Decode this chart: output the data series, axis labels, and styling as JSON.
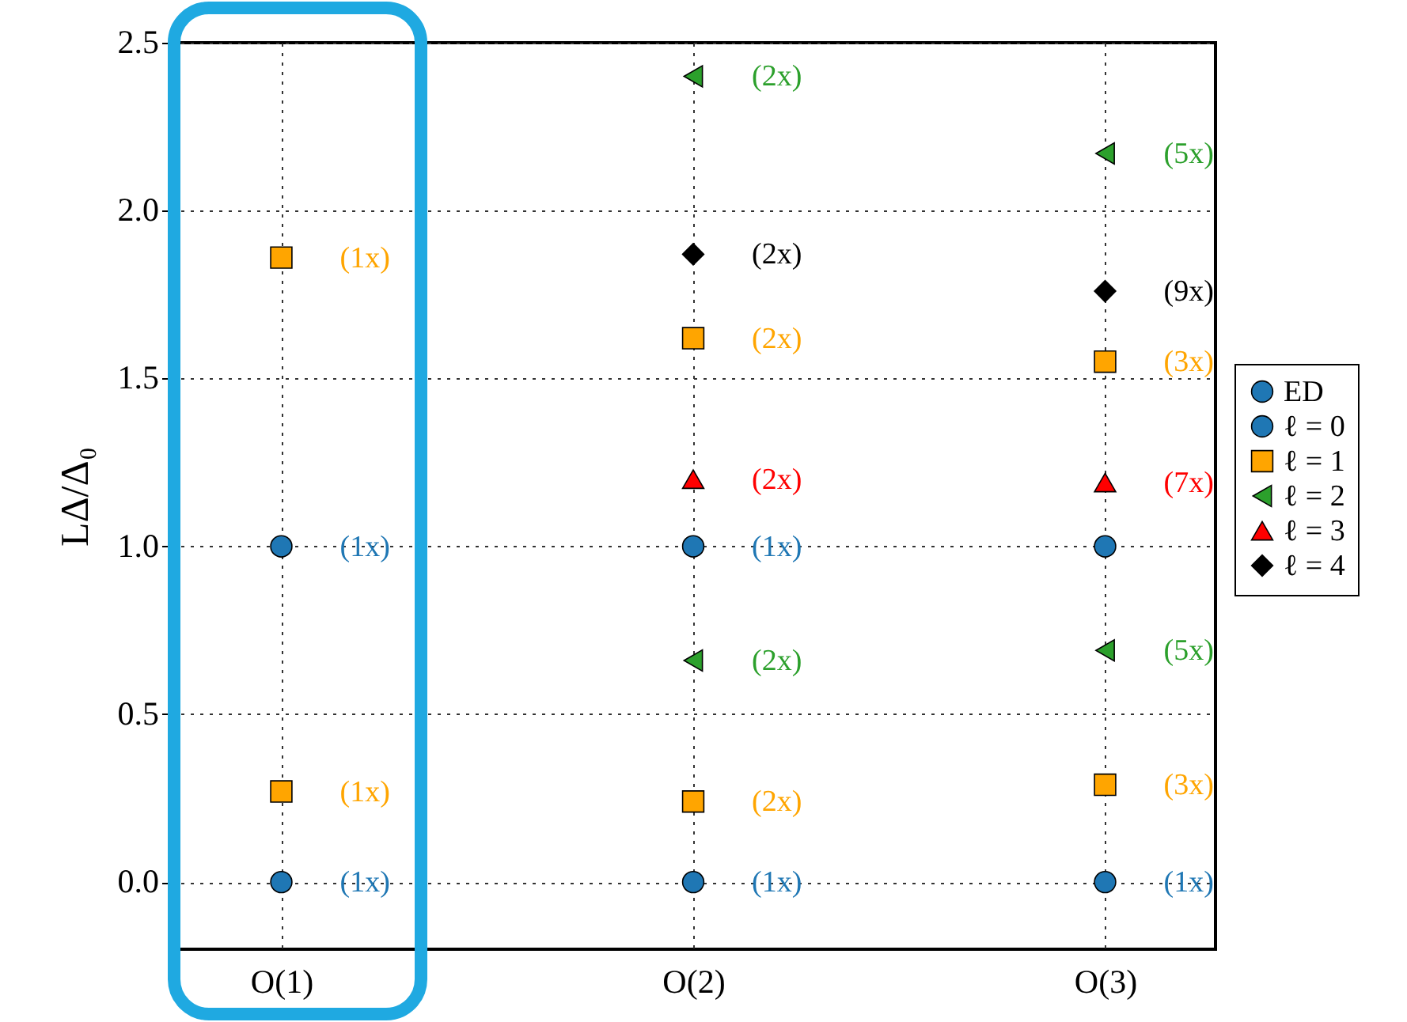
{
  "chart_data": {
    "type": "scatter",
    "ylabel": "LΔ/Δ₀",
    "categories": [
      "O(1)",
      "O(2)",
      "O(3)"
    ],
    "series": [
      {
        "name": "ED",
        "color": "#1f77b4",
        "marker": "circle",
        "values": [
          null,
          null,
          null
        ]
      },
      {
        "name": "ℓ = 0",
        "color": "#1f77b4",
        "marker": "circle",
        "x": [
          "O(1)",
          "O(1)",
          "O(2)",
          "O(2)",
          "O(3)",
          "O(3)"
        ],
        "values": [
          1.0,
          0.0,
          1.0,
          0.0,
          1.0,
          0.0
        ]
      },
      {
        "name": "ℓ = 1",
        "color": "#ffa500",
        "marker": "square",
        "x": [
          "O(1)",
          "O(1)",
          "O(2)",
          "O(2)",
          "O(3)",
          "O(3)"
        ],
        "values": [
          1.86,
          0.27,
          1.62,
          0.24,
          1.55,
          0.29
        ]
      },
      {
        "name": "ℓ = 2",
        "color": "#2ca02c",
        "marker": "triangle-left",
        "x": [
          "O(2)",
          "O(2)",
          "O(3)",
          "O(3)"
        ],
        "values": [
          2.4,
          0.66,
          2.17,
          0.69
        ]
      },
      {
        "name": "ℓ = 3",
        "color": "#ff0000",
        "marker": "triangle-up",
        "x": [
          "O(2)",
          "O(3)"
        ],
        "values": [
          1.2,
          1.19
        ]
      },
      {
        "name": "ℓ = 4",
        "color": "#000000",
        "marker": "diamond",
        "x": [
          "O(2)",
          "O(3)"
        ],
        "values": [
          1.87,
          1.76
        ]
      }
    ],
    "annotations": [
      {
        "text": "(1x)",
        "x": "O(1)",
        "y": 1.0
      },
      {
        "text": "(1x)",
        "x": "O(1)",
        "y": 0.0
      },
      {
        "text": "(1x)",
        "x": "O(2)",
        "y": 1.0
      },
      {
        "text": "(1x)",
        "x": "O(2)",
        "y": 0.0
      },
      {
        "text": "(1x)",
        "x": "O(3)",
        "y": 0.0
      },
      {
        "text": "(1x)",
        "x": "O(1)",
        "y": 1.86
      },
      {
        "text": "(1x)",
        "x": "O(1)",
        "y": 0.27
      },
      {
        "text": "(2x)",
        "x": "O(2)",
        "y": 1.62
      },
      {
        "text": "(2x)",
        "x": "O(2)",
        "y": 0.24
      },
      {
        "text": "(3x)",
        "x": "O(3)",
        "y": 1.55
      },
      {
        "text": "(3x)",
        "x": "O(3)",
        "y": 0.29
      },
      {
        "text": "(2x)",
        "x": "O(2)",
        "y": 2.4
      },
      {
        "text": "(2x)",
        "x": "O(2)",
        "y": 0.66
      },
      {
        "text": "(5x)",
        "x": "O(3)",
        "y": 2.17
      },
      {
        "text": "(5x)",
        "x": "O(3)",
        "y": 0.69
      },
      {
        "text": "(2x)",
        "x": "O(2)",
        "y": 1.2
      },
      {
        "text": "(7x)",
        "x": "O(3)",
        "y": 1.19
      },
      {
        "text": "(2x)",
        "x": "O(2)",
        "y": 1.87
      },
      {
        "text": "(9x)",
        "x": "O(3)",
        "y": 1.76
      }
    ],
    "ylim": [
      -0.2,
      2.5
    ],
    "yticks": [
      {
        "value": 0,
        "label": "0.0"
      },
      {
        "value": 0.5,
        "label": "0.5"
      },
      {
        "value": 1,
        "label": "1.0"
      },
      {
        "value": 1.5,
        "label": "1.5"
      },
      {
        "value": 2,
        "label": "2.0"
      },
      {
        "value": 2.5,
        "label": "2.5"
      }
    ],
    "grid": true,
    "legend": "right"
  }
}
